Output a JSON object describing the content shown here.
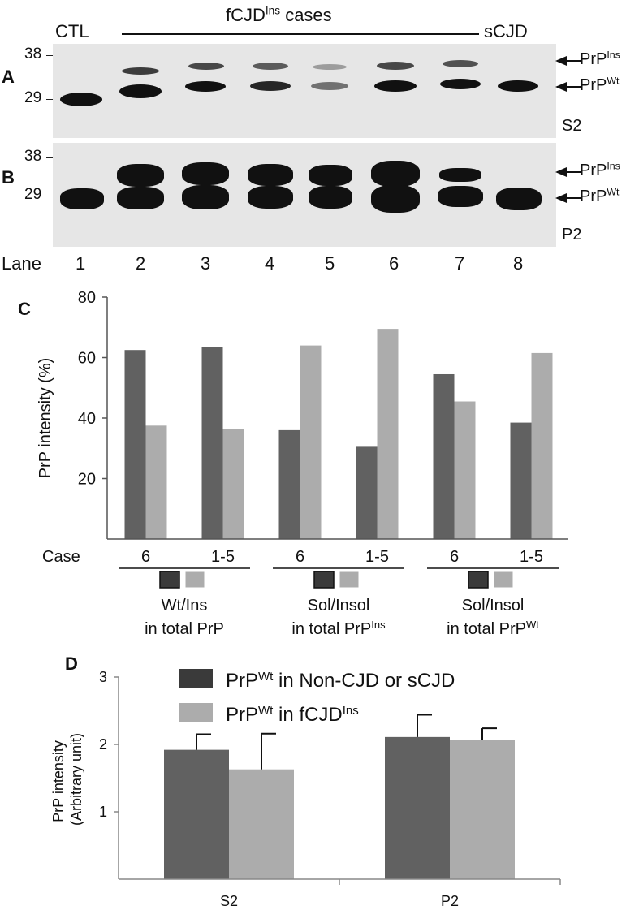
{
  "header": {
    "ctl": "CTL",
    "cases_base": "fCJD",
    "cases_sup": "Ins",
    "cases_tail": " cases",
    "scjd": "sCJD"
  },
  "panel_a": {
    "letter": "A",
    "mw_high": "38",
    "mw_low": "29",
    "fraction": "S2",
    "band_ins": {
      "base": "PrP",
      "sup": "Ins"
    },
    "band_wt": {
      "base": "PrP",
      "sup": "Wt"
    },
    "ins_band_relative_intensity": [
      0,
      0.55,
      0.5,
      0.45,
      0.3,
      0.6,
      0.5,
      0
    ],
    "wt_band_relative_intensity": [
      0.9,
      0.95,
      0.85,
      0.8,
      0.5,
      0.9,
      0.85,
      0.85
    ]
  },
  "panel_b": {
    "letter": "B",
    "mw_high": "38",
    "mw_low": "29",
    "fraction": "P2",
    "band_ins": {
      "base": "PrP",
      "sup": "Ins"
    },
    "band_wt": {
      "base": "PrP",
      "sup": "Wt"
    },
    "ins_band_relative_intensity": [
      0,
      1,
      1,
      1,
      1,
      1,
      0.7,
      0
    ],
    "wt_band_relative_intensity": [
      1,
      1,
      1,
      1,
      1,
      1,
      1,
      1
    ]
  },
  "lanes": {
    "label": "Lane",
    "numbers": [
      "1",
      "2",
      "3",
      "4",
      "5",
      "6",
      "7",
      "8"
    ]
  },
  "colors": {
    "dark": "#616161",
    "light": "#acacac",
    "legend_dark": "#3a3a3a"
  },
  "panel_c": {
    "letter": "C",
    "case_label": "Case",
    "groups": [
      {
        "line1": "Wt/Ins",
        "line2_base": "in total PrP",
        "line2_sup": "",
        "cases": [
          "6",
          "1-5"
        ]
      },
      {
        "line1": "Sol/Insol",
        "line2_base": "in total PrP",
        "line2_sup": "Ins",
        "cases": [
          "6",
          "1-5"
        ]
      },
      {
        "line1": "Sol/Insol",
        "line2_base": "in total PrP",
        "line2_sup": "Wt",
        "cases": [
          "6",
          "1-5"
        ]
      }
    ]
  },
  "panel_d": {
    "letter": "D",
    "legend": [
      {
        "base": "PrP",
        "sup": "Wt",
        "tail": " in Non-CJD or sCJD"
      },
      {
        "base": "PrP",
        "sup": "Wt",
        "tail": " in fCJD",
        "sup2": "Ins"
      }
    ]
  },
  "chart_data": [
    {
      "type": "bar",
      "title": "",
      "ylabel": "PrP intensity (%)",
      "xlabel": "",
      "ylim": [
        0,
        80
      ],
      "yticks": [
        20,
        40,
        60,
        80
      ],
      "categories": [
        "Case 6",
        "Case 1-5",
        "Case 6",
        "Case 1-5",
        "Case 6",
        "Case 1-5"
      ],
      "series": [
        {
          "values": [
            62.5,
            63.5,
            36.0,
            30.5,
            54.5,
            38.5
          ]
        },
        {
          "values": [
            37.5,
            36.5,
            64.0,
            69.5,
            45.5,
            61.5
          ]
        }
      ],
      "grid": false,
      "legend": false
    },
    {
      "type": "bar",
      "title": "",
      "ylabel": "PrP intensity (Arbitrary unit)",
      "xlabel": "",
      "ylim": [
        0,
        3
      ],
      "yticks": [
        1,
        2,
        3
      ],
      "categories": [
        "S2",
        "P2"
      ],
      "series": [
        {
          "name": "PrPWt in Non-CJD or sCJD",
          "values": [
            1.92,
            2.11
          ],
          "error": [
            0.23,
            0.33
          ]
        },
        {
          "name": "PrPWt in fCJDIns",
          "values": [
            1.63,
            2.07
          ],
          "error": [
            0.53,
            0.17
          ]
        }
      ],
      "grid": false,
      "legend": "top"
    }
  ]
}
